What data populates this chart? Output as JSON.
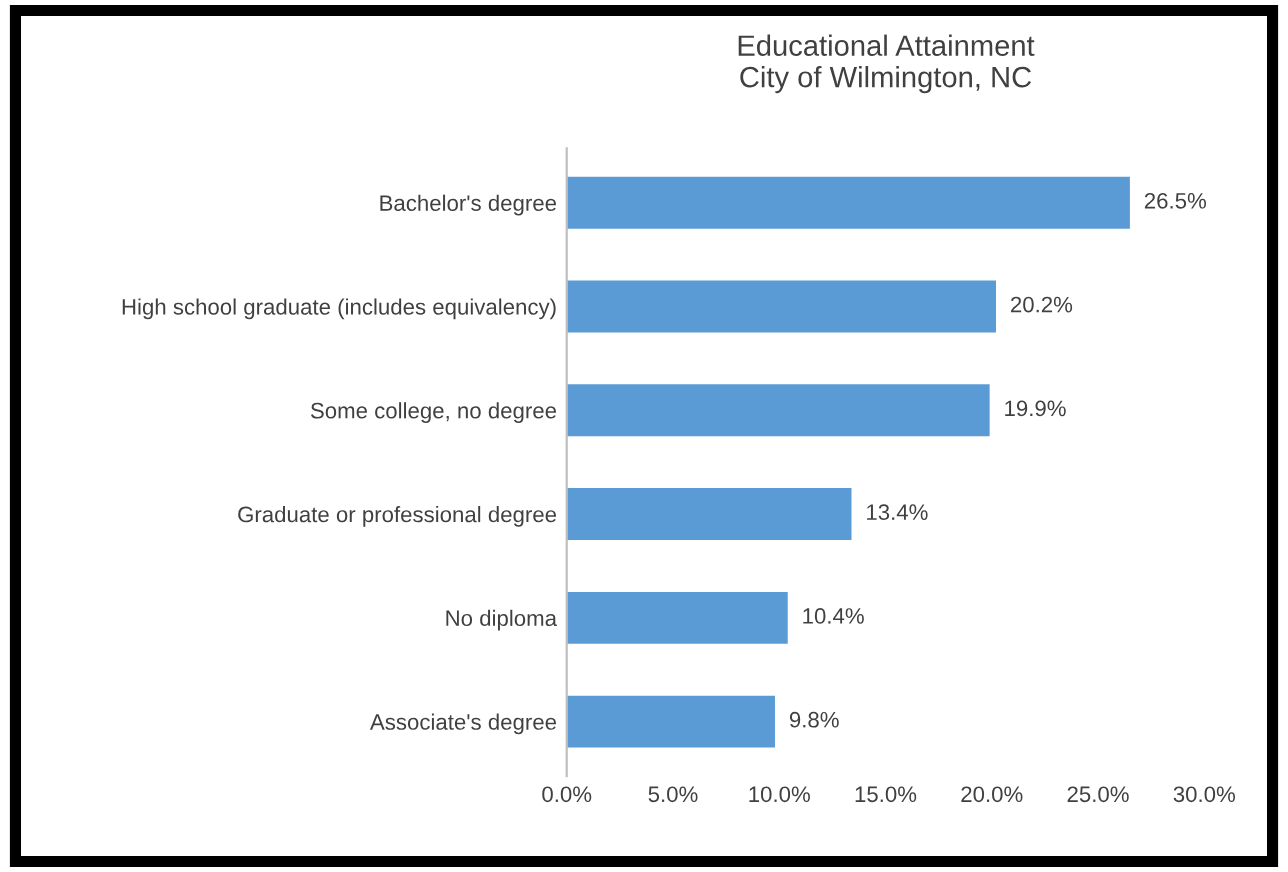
{
  "chart_data": {
    "type": "bar",
    "orientation": "horizontal",
    "title": "Educational Attainment\nCity of Wilmington, NC",
    "categories": [
      "Bachelor's degree",
      "High school graduate (includes equivalency)",
      "Some college, no degree",
      "Graduate or professional degree",
      "No diploma",
      "Associate's degree"
    ],
    "values": [
      26.5,
      20.2,
      19.9,
      13.4,
      10.4,
      9.8
    ],
    "value_labels": [
      "26.5%",
      "20.2%",
      "19.9%",
      "13.4%",
      "10.4%",
      "9.8%"
    ],
    "color": "#5b9bd5",
    "xlim": [
      0,
      30
    ],
    "xticks": [
      {
        "value": 0,
        "label": "0.0%"
      },
      {
        "value": 5,
        "label": "5.0%"
      },
      {
        "value": 10,
        "label": "10.0%"
      },
      {
        "value": 15,
        "label": "15.0%"
      },
      {
        "value": 20,
        "label": "20.0%"
      },
      {
        "value": 25,
        "label": "25.0%"
      },
      {
        "value": 30,
        "label": "30.0%"
      }
    ],
    "grid": false,
    "legend": false
  }
}
